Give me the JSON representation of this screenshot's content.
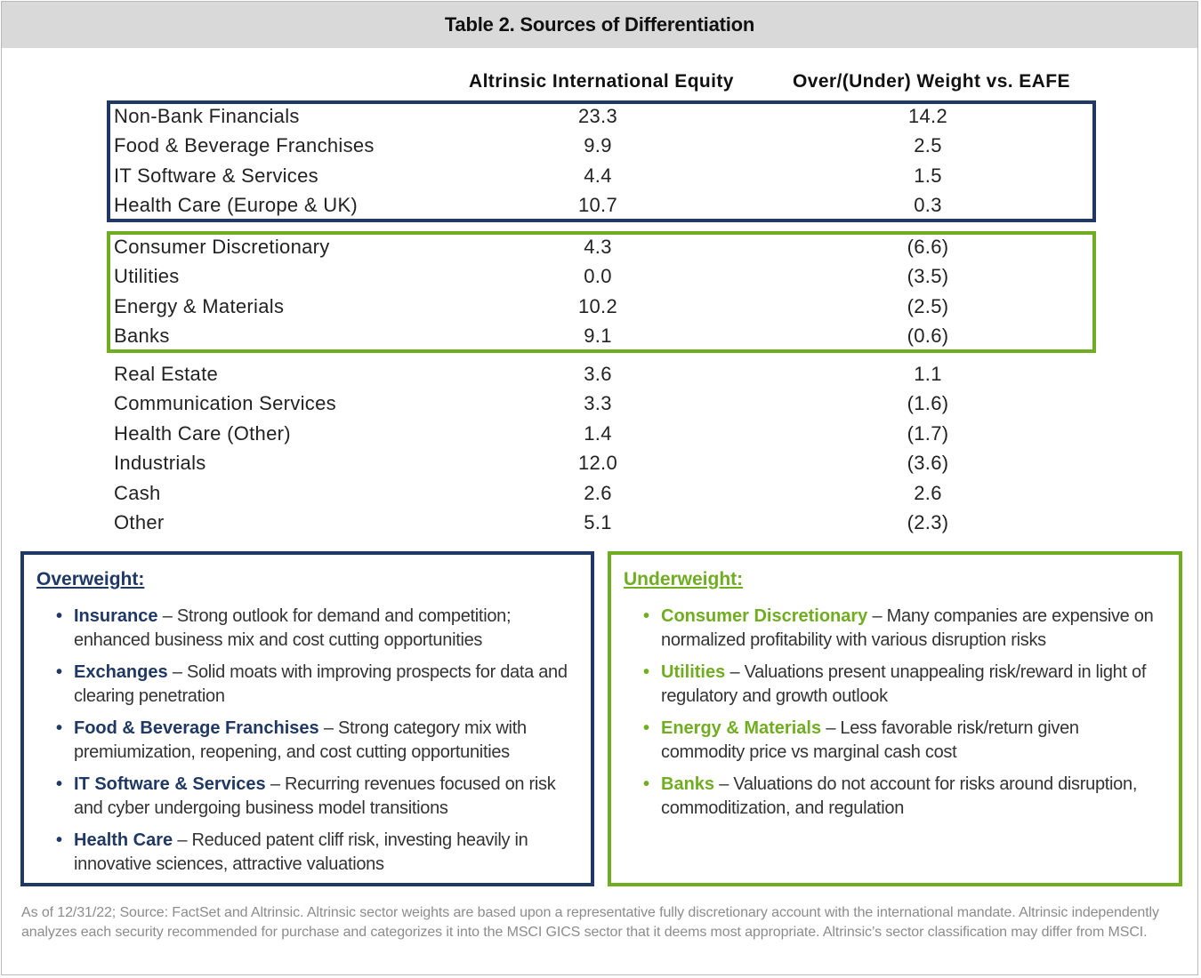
{
  "title": "Table 2. Sources of Differentiation",
  "columns": {
    "col1": "Altrinsic International Equity",
    "col2": "Over/(Under) Weight vs. EAFE"
  },
  "overweight_group": [
    {
      "name": "Non-Bank Financials",
      "weight": "23.3",
      "diff": "14.2"
    },
    {
      "name": "Food & Beverage Franchises",
      "weight": "9.9",
      "diff": "2.5"
    },
    {
      "name": "IT Software & Services",
      "weight": "4.4",
      "diff": "1.5"
    },
    {
      "name": "Health Care (Europe & UK)",
      "weight": "10.7",
      "diff": "0.3"
    }
  ],
  "underweight_group": [
    {
      "name": "Consumer Discretionary",
      "weight": "4.3",
      "diff": "(6.6)"
    },
    {
      "name": "Utilities",
      "weight": "0.0",
      "diff": "(3.5)"
    },
    {
      "name": "Energy & Materials",
      "weight": "10.2",
      "diff": "(2.5)"
    },
    {
      "name": "Banks",
      "weight": "9.1",
      "diff": "(0.6)"
    }
  ],
  "other_group": [
    {
      "name": "Real Estate",
      "weight": "3.6",
      "diff": "1.1"
    },
    {
      "name": "Communication Services",
      "weight": "3.3",
      "diff": "(1.6)"
    },
    {
      "name": "Health Care (Other)",
      "weight": "1.4",
      "diff": "(1.7)"
    },
    {
      "name": "Industrials",
      "weight": "12.0",
      "diff": "(3.6)"
    },
    {
      "name": "Cash",
      "weight": "2.6",
      "diff": "2.6"
    },
    {
      "name": "Other",
      "weight": "5.1",
      "diff": "(2.3)"
    }
  ],
  "overweight_panel": {
    "heading": "Overweight:",
    "items": [
      {
        "term": "Insurance",
        "text": " – Strong outlook for demand and competition; enhanced business mix and cost cutting opportunities"
      },
      {
        "term": "Exchanges",
        "text": " – Solid moats with improving prospects for data and clearing penetration"
      },
      {
        "term": "Food & Beverage Franchises",
        "text": " – Strong category mix with premiumization, reopening, and cost cutting opportunities"
      },
      {
        "term": "IT Software & Services",
        "text": " – Recurring revenues focused on risk and cyber undergoing business model transitions"
      },
      {
        "term": "Health Care",
        "text": " – Reduced patent cliff risk,  investing heavily in innovative sciences, attractive valuations"
      }
    ]
  },
  "underweight_panel": {
    "heading": "Underweight:",
    "items": [
      {
        "term": "Consumer Discretionary",
        "text": " – Many companies are expensive on normalized profitability with various disruption risks"
      },
      {
        "term": "Utilities",
        "text": " – Valuations present unappealing risk/reward in light of regulatory and growth outlook"
      },
      {
        "term": "Energy & Materials",
        "text": " – Less favorable risk/return given commodity price vs marginal cash cost"
      },
      {
        "term": "Banks",
        "text": " – Valuations do not account for risks around disruption, commoditization, and regulation"
      }
    ]
  },
  "footnote": "As of 12/31/22; Source: FactSet and Altrinsic.  Altrinsic sector weights are based upon a representative fully discretionary account with the international mandate. Altrinsic independently analyzes each security recommended for purchase and categorizes it into the MSCI GICS sector that it deems most appropriate. Altrinsic’s sector classification may differ from MSCI.",
  "colors": {
    "navy": "#1f3864",
    "green": "#70ad21",
    "title_bar": "#d9d9d9",
    "footnote": "#8c8c8c"
  }
}
